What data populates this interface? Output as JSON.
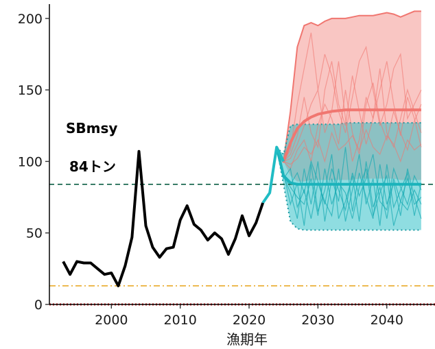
{
  "chart_data": {
    "type": "line",
    "title": "",
    "xlabel": "漁期年",
    "ylabel": "",
    "xlim": [
      1991,
      2047
    ],
    "ylim": [
      0,
      210
    ],
    "x_ticks": [
      2000,
      2010,
      2020,
      2030,
      2040
    ],
    "y_ticks": [
      0,
      50,
      100,
      150,
      200
    ],
    "grid": false,
    "annotations": [
      "SBmsy",
      "84トン"
    ],
    "reference_lines": [
      {
        "y": 84,
        "style": "dashed",
        "color": "#0b5e43"
      },
      {
        "y": 13,
        "style": "dashdot",
        "color": "#e8a317"
      },
      {
        "y": 0,
        "style": "dotted",
        "color": "#cc0000"
      }
    ],
    "colors": {
      "historical": "#000000",
      "projection_a": "#f07670",
      "projection_b": "#20bcc4"
    },
    "series": [
      {
        "role": "historical",
        "x": [
          1993,
          1994,
          1995,
          1996,
          1997,
          1998,
          1999,
          2000,
          2001,
          2002,
          2003,
          2004,
          2005,
          2006,
          2007,
          2008,
          2009,
          2010,
          2011,
          2012,
          2013,
          2014,
          2015,
          2016,
          2017,
          2018,
          2019,
          2020,
          2021,
          2022
        ],
        "values": [
          30,
          21,
          30,
          29,
          29,
          25,
          21,
          22,
          13,
          27,
          47,
          107,
          55,
          40,
          33,
          39,
          40,
          59,
          69,
          56,
          52,
          45,
          50,
          46,
          35,
          46,
          62,
          48,
          57,
          71
        ]
      },
      {
        "role": "transition",
        "x": [
          2022,
          2023,
          2024,
          2025
        ],
        "values": [
          71,
          78,
          110,
          100
        ]
      },
      {
        "role": "projection_a_median",
        "x": [
          2024,
          2025,
          2026,
          2027,
          2028,
          2029,
          2030,
          2031,
          2032,
          2033,
          2034,
          2035,
          2036,
          2037,
          2038,
          2039,
          2040,
          2041,
          2042,
          2043,
          2044,
          2045
        ],
        "values": [
          110,
          100,
          113,
          123,
          128,
          131,
          133,
          134,
          135,
          135.5,
          136,
          136,
          136,
          136,
          136,
          136,
          136,
          136,
          136,
          136,
          136,
          136
        ]
      },
      {
        "role": "projection_a_band",
        "x": [
          2025,
          2026,
          2027,
          2028,
          2029,
          2030,
          2031,
          2032,
          2033,
          2034,
          2035,
          2036,
          2037,
          2038,
          2039,
          2040,
          2041,
          2042,
          2043,
          2044,
          2045
        ],
        "upper": [
          100,
          135,
          180,
          195,
          197,
          195,
          198,
          200,
          200,
          200,
          201,
          202,
          202,
          202,
          203,
          204,
          203,
          201,
          203,
          205,
          205
        ],
        "lower": [
          100,
          90,
          86,
          86,
          87,
          87,
          87,
          87,
          87,
          87,
          87,
          88,
          88,
          88,
          88,
          88,
          88,
          87,
          87,
          87,
          87
        ]
      },
      {
        "role": "projection_b_median",
        "x": [
          2024,
          2025,
          2026,
          2027,
          2028,
          2029,
          2030,
          2031,
          2032,
          2033,
          2034,
          2035,
          2036,
          2037,
          2038,
          2039,
          2040,
          2041,
          2042,
          2043,
          2044,
          2045
        ],
        "values": [
          110,
          90,
          85,
          84,
          84,
          84,
          84,
          84,
          84,
          84,
          84,
          84,
          84,
          84,
          84,
          84,
          84,
          84,
          84,
          84,
          84,
          84
        ]
      },
      {
        "role": "projection_b_band",
        "x": [
          2024,
          2025,
          2026,
          2027,
          2028,
          2029,
          2030,
          2031,
          2032,
          2033,
          2034,
          2035,
          2036,
          2037,
          2038,
          2039,
          2040,
          2041,
          2042,
          2043,
          2044,
          2045
        ],
        "upper": [
          110,
          105,
          125,
          126,
          126,
          126,
          126,
          126,
          126,
          126,
          127,
          127,
          127,
          127,
          127,
          127,
          127,
          127,
          127,
          127,
          127,
          127
        ],
        "lower": [
          110,
          84,
          58,
          53,
          52,
          52,
          52,
          52,
          52,
          52,
          52,
          52,
          52,
          52,
          52,
          52,
          52,
          52,
          52,
          52,
          52,
          52
        ]
      }
    ],
    "sample_trajectories_a": [
      [
        110,
        100,
        108,
        140,
        165,
        190,
        150,
        175,
        160,
        135,
        120,
        145,
        170,
        180,
        150,
        125,
        140,
        165,
        175,
        130,
        140,
        150
      ],
      [
        110,
        100,
        102,
        112,
        125,
        140,
        150,
        120,
        135,
        170,
        130,
        100,
        115,
        145,
        130,
        165,
        120,
        110,
        130,
        150,
        135,
        120
      ],
      [
        110,
        100,
        95,
        108,
        115,
        100,
        125,
        140,
        130,
        112,
        150,
        120,
        105,
        140,
        155,
        128,
        115,
        135,
        120,
        108,
        128,
        140
      ],
      [
        110,
        100,
        105,
        118,
        145,
        120,
        110,
        150,
        170,
        140,
        125,
        160,
        135,
        112,
        130,
        150,
        170,
        140,
        118,
        145,
        130,
        110
      ],
      [
        110,
        100,
        98,
        102,
        110,
        105,
        115,
        100,
        120,
        108,
        112,
        118,
        108,
        122,
        110,
        105,
        118,
        112,
        100,
        115,
        108,
        112
      ]
    ],
    "sample_trajectories_b": [
      [
        110,
        90,
        78,
        60,
        95,
        70,
        100,
        58,
        88,
        72,
        110,
        65,
        92,
        75,
        60,
        98,
        70,
        85,
        62,
        95,
        75,
        60
      ],
      [
        110,
        92,
        70,
        85,
        55,
        98,
        65,
        80,
        105,
        60,
        72,
        90,
        58,
        100,
        68,
        82,
        60,
        88,
        72,
        66,
        80,
        70
      ],
      [
        110,
        88,
        95,
        68,
        80,
        60,
        85,
        72,
        62,
        95,
        58,
        80,
        105,
        70,
        88,
        55,
        98,
        68,
        80,
        92,
        62,
        85
      ],
      [
        110,
        90,
        82,
        75,
        70,
        88,
        62,
        95,
        70,
        85,
        78,
        60,
        82,
        95,
        62,
        78,
        90,
        55,
        72,
        88,
        70,
        75
      ],
      [
        110,
        91,
        84,
        92,
        78,
        100,
        86,
        70,
        95,
        80,
        66,
        92,
        76,
        88,
        105,
        72,
        66,
        95,
        82,
        70,
        90,
        80
      ]
    ]
  }
}
